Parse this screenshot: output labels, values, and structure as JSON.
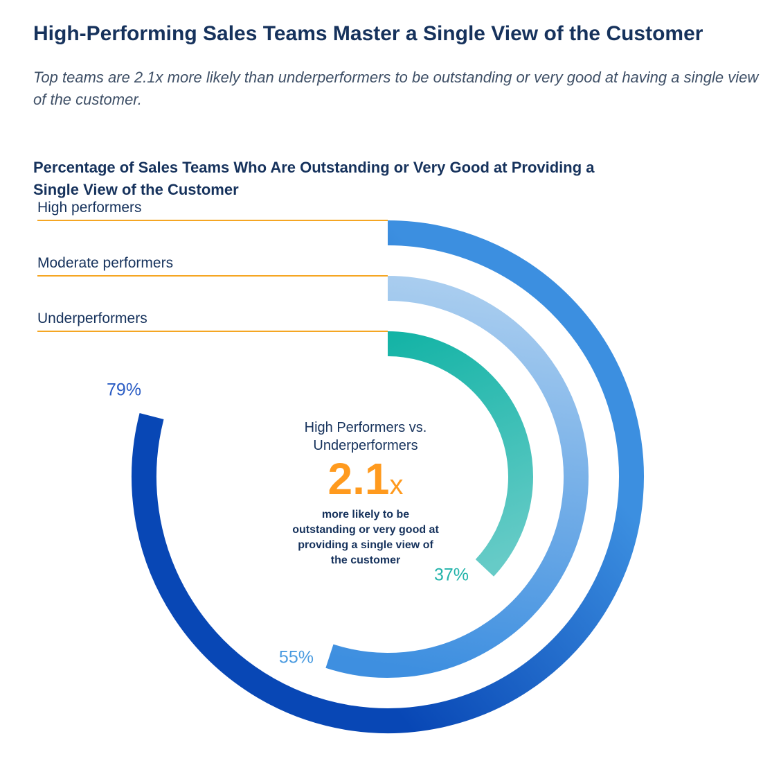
{
  "header": {
    "title": "High-Performing Sales Teams Master a Single View of the Customer",
    "subtitle": "Top teams are 2.1x more likely than underperformers to be outstanding or very good at having a single view of the customer."
  },
  "chart_data": {
    "type": "radial-bar",
    "title": "Percentage of Sales Teams Who Are Outstanding or Very Good at Providing a Single View of the Customer",
    "unit": "%",
    "max": 100,
    "series": [
      {
        "name": "High performers",
        "value": 79,
        "label": "79%",
        "color_start": "#3c8fe0",
        "color_end": "#0847b5",
        "label_color": "#2a5cc4"
      },
      {
        "name": "Moderate performers",
        "value": 55,
        "label": "55%",
        "color_start": "#a9cdef",
        "color_end": "#3e8fe0",
        "label_color": "#4a9be0"
      },
      {
        "name": "Underperformers",
        "value": 37,
        "label": "37%",
        "color_start": "#12b3a5",
        "color_end": "#66cbc7",
        "label_color": "#22b3aa"
      }
    ],
    "guide_line_color": "#f5a623"
  },
  "callout": {
    "heading_line1": "High Performers vs.",
    "heading_line2": "Underperformers",
    "ratio_number": "2.1",
    "ratio_suffix": "x",
    "note": "more likely to be outstanding or very good at providing a single view of the customer"
  }
}
